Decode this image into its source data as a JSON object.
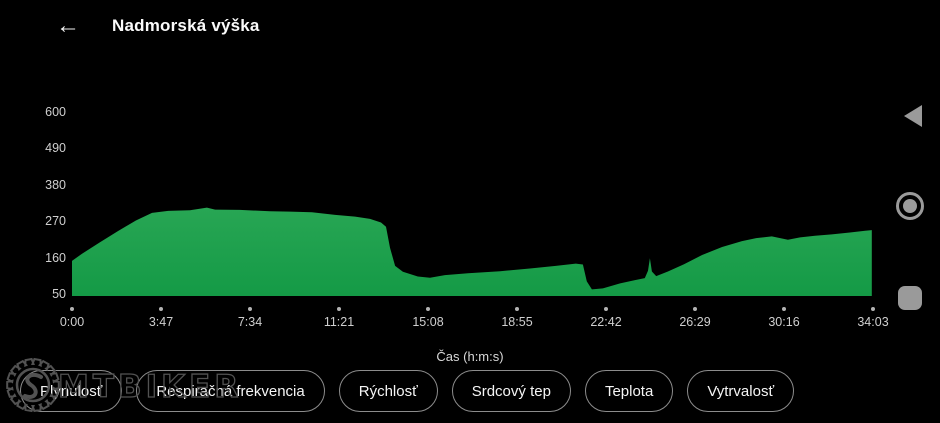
{
  "header": {
    "title": "Nadmorská výška",
    "back_glyph": "←"
  },
  "chart_data": {
    "type": "area",
    "title": "Nadmorská výška",
    "xlabel": "Čas (h:m:s)",
    "ylabel": "",
    "grid": false,
    "legend": false,
    "ylim": [
      50,
      650
    ],
    "xlim_seconds": [
      0,
      2043
    ],
    "y_ticks": [
      "600",
      "490",
      "380",
      "270",
      "160",
      "50"
    ],
    "x_ticks": [
      "0:00",
      "3:47",
      "7:34",
      "11:21",
      "15:08",
      "18:55",
      "22:42",
      "26:29",
      "30:16",
      "34:03"
    ],
    "x_tick_seconds": [
      0,
      227,
      454,
      681,
      908,
      1135,
      1362,
      1589,
      1816,
      2043
    ],
    "series": [
      {
        "name": "nadmorska-vyska",
        "fill_top": "#28a654",
        "fill_bottom": "#149a46",
        "points": [
          [
            0,
            150
          ],
          [
            26,
            172
          ],
          [
            71,
            206
          ],
          [
            117,
            240
          ],
          [
            163,
            272
          ],
          [
            204,
            295
          ],
          [
            245,
            301
          ],
          [
            301,
            303
          ],
          [
            344,
            311
          ],
          [
            365,
            305
          ],
          [
            428,
            304
          ],
          [
            505,
            300
          ],
          [
            556,
            299
          ],
          [
            612,
            297
          ],
          [
            671,
            289
          ],
          [
            722,
            284
          ],
          [
            760,
            277
          ],
          [
            788,
            266
          ],
          [
            801,
            253
          ],
          [
            811,
            190
          ],
          [
            824,
            135
          ],
          [
            844,
            117
          ],
          [
            882,
            103
          ],
          [
            913,
            99
          ],
          [
            951,
            107
          ],
          [
            1010,
            113
          ],
          [
            1092,
            119
          ],
          [
            1168,
            127
          ],
          [
            1234,
            135
          ],
          [
            1285,
            142
          ],
          [
            1303,
            139
          ],
          [
            1313,
            88
          ],
          [
            1326,
            64
          ],
          [
            1354,
            67
          ],
          [
            1398,
            82
          ],
          [
            1436,
            92
          ],
          [
            1461,
            98
          ],
          [
            1469,
            120
          ],
          [
            1474,
            158
          ],
          [
            1479,
            118
          ],
          [
            1490,
            104
          ],
          [
            1520,
            118
          ],
          [
            1561,
            140
          ],
          [
            1607,
            168
          ],
          [
            1658,
            192
          ],
          [
            1709,
            210
          ],
          [
            1745,
            219
          ],
          [
            1785,
            224
          ],
          [
            1826,
            214
          ],
          [
            1857,
            221
          ],
          [
            1895,
            226
          ],
          [
            1938,
            230
          ],
          [
            1984,
            236
          ],
          [
            2023,
            241
          ],
          [
            2040,
            243
          ]
        ]
      }
    ]
  },
  "buttons": [
    "Plynulosť",
    "Respiračná frekvencia",
    "Rýchlosť",
    "Srdcový tep",
    "Teplota",
    "Vytrvalosť"
  ],
  "watermark": {
    "text": "MTBIKER"
  },
  "icons": {
    "header_back": "left-arrow",
    "nav_back": "left-triangle",
    "nav_home": "circle-ring",
    "nav_recents": "rounded-square"
  },
  "colors": {
    "background": "#000000",
    "area_green_top": "#28a654",
    "area_green_bottom": "#149a46",
    "axis_text": "#cfcfcf",
    "button_border": "#8c8c8c",
    "nav_icon_gray": "#9a9a9a",
    "watermark_gray": "#525252"
  }
}
